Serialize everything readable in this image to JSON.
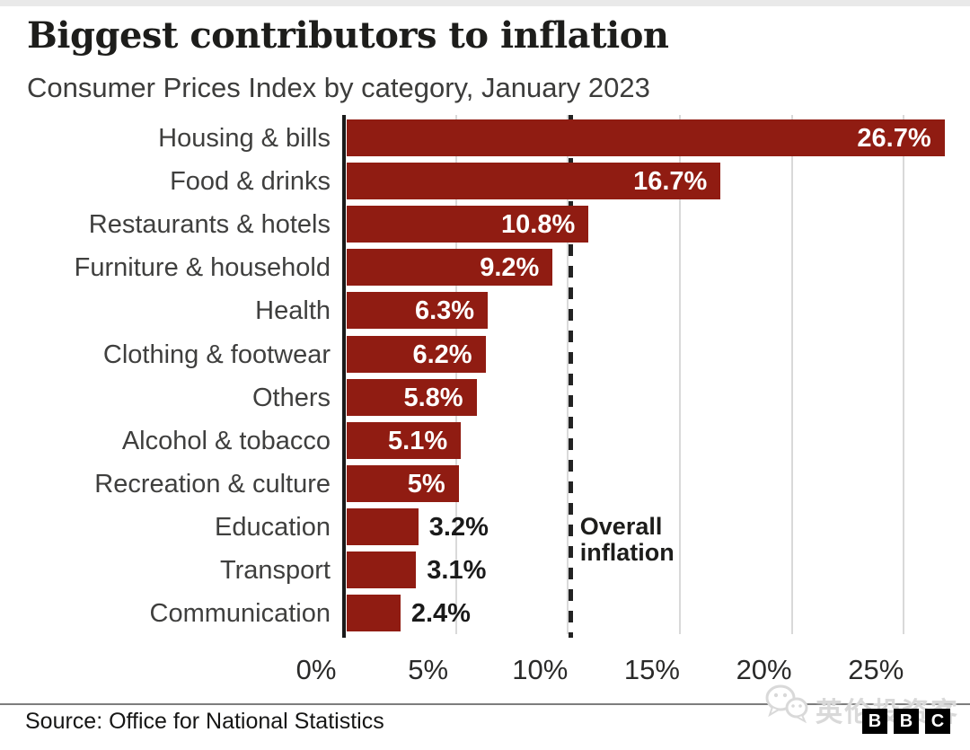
{
  "chart_data": {
    "type": "bar",
    "orientation": "horizontal",
    "title": "Biggest contributors to inflation",
    "subtitle": "Consumer Prices Index by category, January 2023",
    "categories": [
      "Housing & bills",
      "Food & drinks",
      "Restaurants & hotels",
      "Furniture & household",
      "Health",
      "Clothing & footwear",
      "Others",
      "Alcohol & tobacco",
      "Recreation & culture",
      "Education",
      "Transport",
      "Communication"
    ],
    "values": [
      26.7,
      16.7,
      10.8,
      9.2,
      6.3,
      6.2,
      5.8,
      5.1,
      5,
      3.2,
      3.1,
      2.4
    ],
    "value_labels": [
      "26.7%",
      "16.7%",
      "10.8%",
      "9.2%",
      "6.3%",
      "6.2%",
      "5.8%",
      "5.1%",
      "5%",
      "3.2%",
      "3.1%",
      "2.4%"
    ],
    "x_ticks": [
      {
        "label": "0%",
        "value": 0
      },
      {
        "label": "5%",
        "value": 5
      },
      {
        "label": "10%",
        "value": 10
      },
      {
        "label": "15%",
        "value": 15
      },
      {
        "label": "20%",
        "value": 20
      },
      {
        "label": "25%",
        "value": 25
      }
    ],
    "xlim": [
      0,
      27.6
    ],
    "grid": "vertical",
    "legend": "none",
    "reference_line": {
      "value": 10.1,
      "label_lines": [
        "Overall",
        "inflation"
      ],
      "style": "dashed"
    },
    "inside_label_threshold": 5,
    "colors": {
      "bar": "#901c12",
      "grid": "#d9d9d9",
      "axis": "#1a1a1a",
      "reference": "#222222",
      "value_inside": "#ffffff",
      "value_outside": "#1a1a1a"
    }
  },
  "footer": {
    "source": "Source: Office for National Statistics",
    "watermark": {
      "icon": "wechat-icon",
      "text": "英伦投资客"
    },
    "bbc_logo": [
      "B",
      "B",
      "C"
    ]
  }
}
